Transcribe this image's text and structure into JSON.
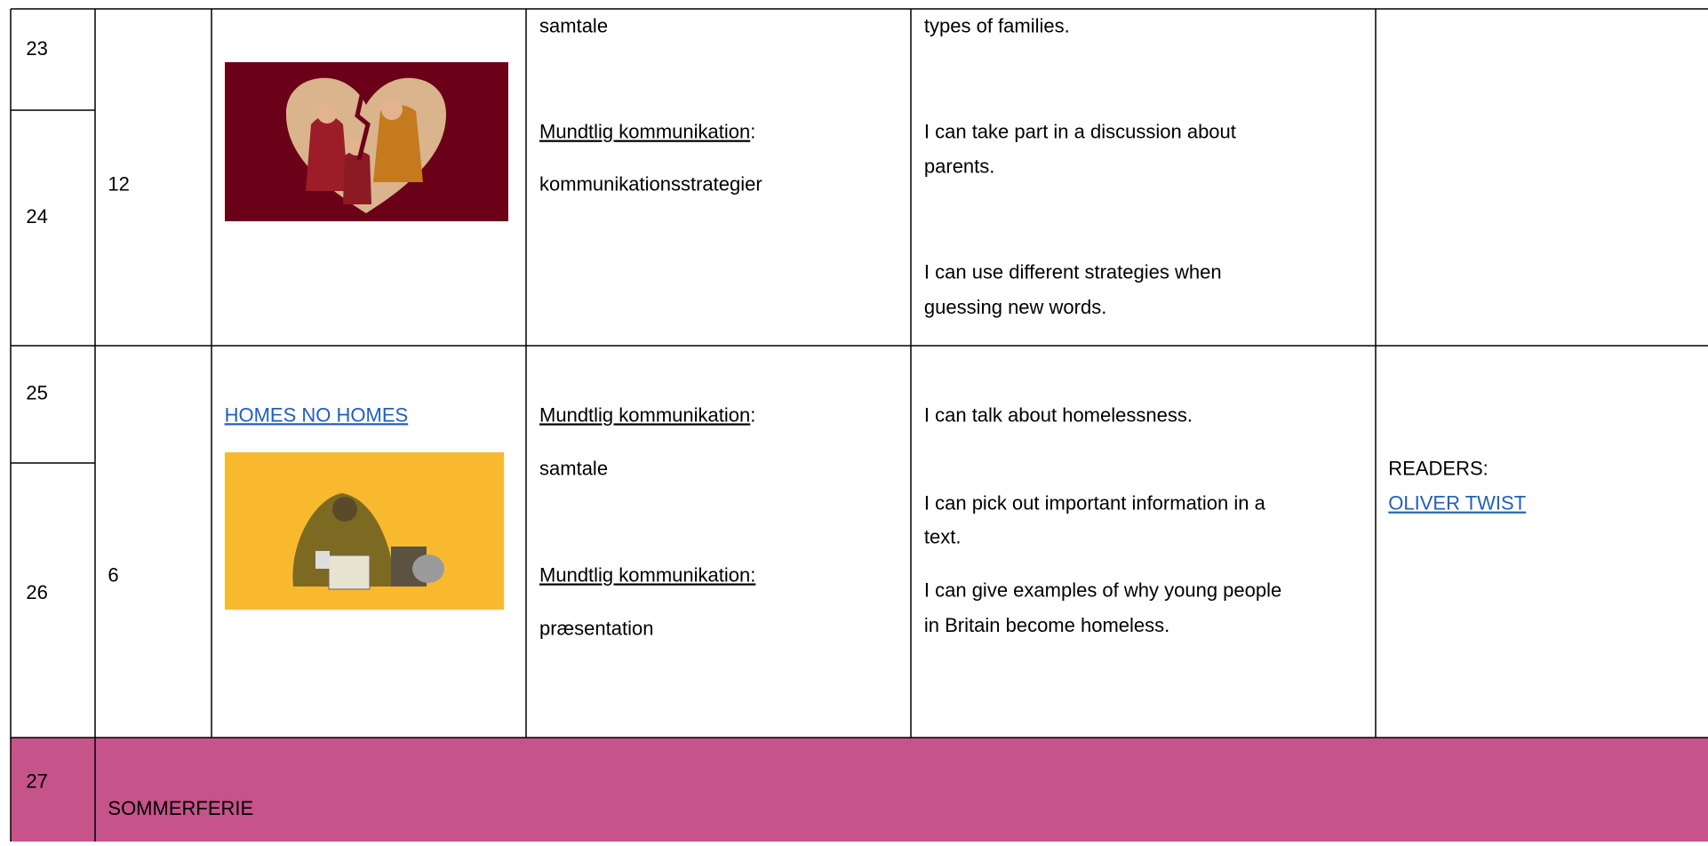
{
  "rows": [
    {
      "weeks": [
        "23",
        "24"
      ],
      "lessons": "12",
      "area_top": "samtale",
      "area_heading": "Mundtlig kommunikation",
      "area_heading_suffix": ":",
      "area_sub": "kommunikationsstrategier",
      "goals": [
        "types of families.",
        "I can take part in a discussion about",
        "parents.",
        "I can use different strategies when",
        "guessing new words."
      ]
    },
    {
      "weeks": [
        "25",
        "26"
      ],
      "lessons": "6",
      "topic_link": "HOMES NO HOMES",
      "area_heading": "Mundtlig kommunikation",
      "area_heading_suffix": ":",
      "area_sub": "samtale",
      "area2_heading": "Mundtlig kommunikation:",
      "area2_sub": "præsentation",
      "goals": [
        "I can talk about homelessness.",
        "I can pick out important information in a",
        "text.",
        "I can give examples of why young people",
        "in Britain become homeless."
      ],
      "notes_label": "READERS:",
      "notes_link": "OLIVER TWIST"
    },
    {
      "weeks": [
        "27"
      ],
      "label": "SOMMERFERIE"
    }
  ]
}
